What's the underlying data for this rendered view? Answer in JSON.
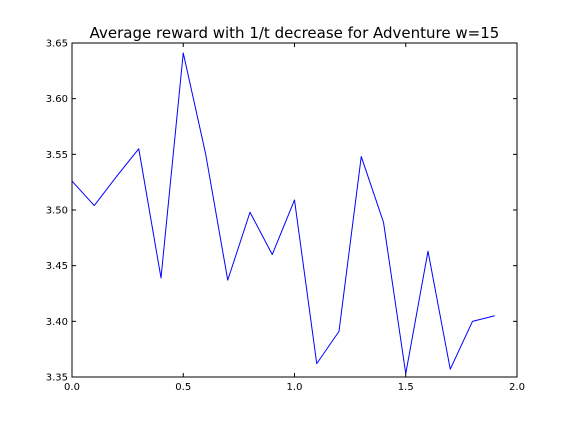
{
  "chart_data": {
    "type": "line",
    "title": "Average reward with 1/t decrease for Adventure w=15",
    "xlabel": "",
    "ylabel": "",
    "xlim": [
      0.0,
      2.0
    ],
    "ylim": [
      3.35,
      3.65
    ],
    "xticks": [
      "0.0",
      "0.5",
      "1.0",
      "1.5",
      "2.0"
    ],
    "yticks": [
      "3.35",
      "3.40",
      "3.45",
      "3.50",
      "3.55",
      "3.60",
      "3.65"
    ],
    "grid": false,
    "legend": "none",
    "series": [
      {
        "color": "#0000ff",
        "x": [
          0.0,
          0.1,
          0.2,
          0.3,
          0.4,
          0.5,
          0.6,
          0.7,
          0.8,
          0.9,
          1.0,
          1.1,
          1.2,
          1.3,
          1.4,
          1.5,
          1.6,
          1.7,
          1.8,
          1.9
        ],
        "y": [
          3.526,
          3.504,
          3.53,
          3.555,
          3.439,
          3.641,
          3.551,
          3.437,
          3.498,
          3.46,
          3.509,
          3.362,
          3.391,
          3.548,
          3.489,
          3.353,
          3.463,
          3.357,
          3.4,
          3.405
        ]
      }
    ]
  }
}
